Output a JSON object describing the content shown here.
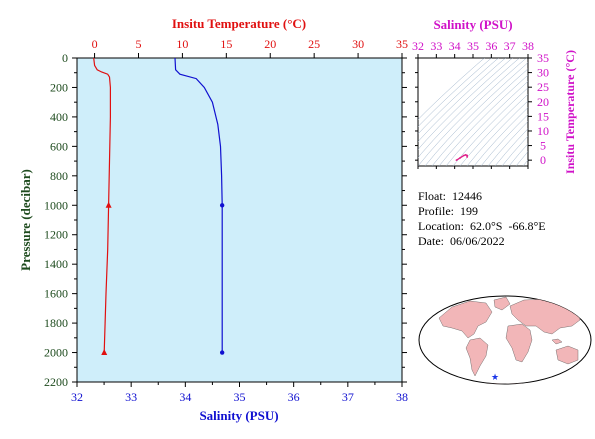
{
  "chart_data": [
    {
      "type": "line",
      "title": "",
      "top_axis_label": "Insitu Temperature (°C)",
      "bottom_axis_label": "Salinity (PSU)",
      "ylabel": "Pressure (decibar)",
      "temperature_range": [
        -2,
        35
      ],
      "temperature_ticks": [
        0,
        5,
        10,
        15,
        20,
        25,
        30,
        35
      ],
      "salinity_range": [
        32,
        38
      ],
      "salinity_ticks": [
        32,
        33,
        34,
        35,
        36,
        37,
        38
      ],
      "pressure_range": [
        0,
        2200
      ],
      "pressure_ticks": [
        0,
        200,
        400,
        600,
        800,
        1000,
        1200,
        1400,
        1600,
        1800,
        2000,
        2200
      ],
      "y_inverted": true,
      "grid": false,
      "series": [
        {
          "color": "#e01010",
          "axis": "temperature",
          "points": [
            [
              -0.1,
              0
            ],
            [
              0.0,
              50
            ],
            [
              0.3,
              80
            ],
            [
              0.8,
              95
            ],
            [
              1.5,
              110
            ],
            [
              1.7,
              130
            ],
            [
              1.8,
              200
            ],
            [
              1.8,
              400
            ],
            [
              1.7,
              700
            ],
            [
              1.6,
              1000
            ],
            [
              1.5,
              1300
            ],
            [
              1.3,
              1600
            ],
            [
              1.2,
              1800
            ],
            [
              1.1,
              2000
            ]
          ],
          "markers": [
            [
              1.6,
              1000
            ],
            [
              1.1,
              2000
            ]
          ],
          "marker": "triangle"
        },
        {
          "color": "#1010d0",
          "axis": "salinity",
          "points": [
            [
              33.81,
              0
            ],
            [
              33.82,
              80
            ],
            [
              33.9,
              110
            ],
            [
              34.2,
              140
            ],
            [
              34.35,
              200
            ],
            [
              34.5,
              300
            ],
            [
              34.6,
              450
            ],
            [
              34.65,
              600
            ],
            [
              34.67,
              800
            ],
            [
              34.68,
              1000
            ],
            [
              34.68,
              1300
            ],
            [
              34.68,
              1600
            ],
            [
              34.68,
              2000
            ]
          ],
          "markers": [
            [
              34.68,
              1000
            ],
            [
              34.68,
              2000
            ]
          ],
          "marker": "circle"
        }
      ]
    },
    {
      "type": "scatter",
      "title": "",
      "top_axis_label": "Salinity (PSU)",
      "right_axis_label": "Insitu Temperature (°C)",
      "salinity_range": [
        32,
        38
      ],
      "salinity_ticks": [
        32,
        33,
        34,
        35,
        36,
        37,
        38
      ],
      "temperature_range": [
        -2,
        35
      ],
      "temperature_ticks": [
        0,
        5,
        10,
        15,
        20,
        25,
        30,
        35
      ],
      "density_contours": true,
      "points": [
        [
          34.1,
          0.0
        ],
        [
          34.3,
          0.8
        ],
        [
          34.5,
          1.6
        ],
        [
          34.6,
          1.8
        ],
        [
          34.68,
          1.6
        ],
        [
          34.68,
          1.1
        ]
      ],
      "color": "#e0208a"
    }
  ],
  "float_info": {
    "float": "Float:  12446",
    "profile": "Profile:  199",
    "location": "Location:  62.0°S  -66.8°E",
    "date": "Date:  06/06/2022"
  },
  "map": {
    "land_color": "#f2b6b8",
    "ocean_color": "#ffffff",
    "marker_color": "#1a35e8"
  },
  "colors": {
    "plot_bg": "#cfeefa",
    "temperature": "#e01010",
    "salinity": "#1010d0",
    "pressure_axis": "#1e4b1e",
    "ts_axis": "#d012c8"
  }
}
